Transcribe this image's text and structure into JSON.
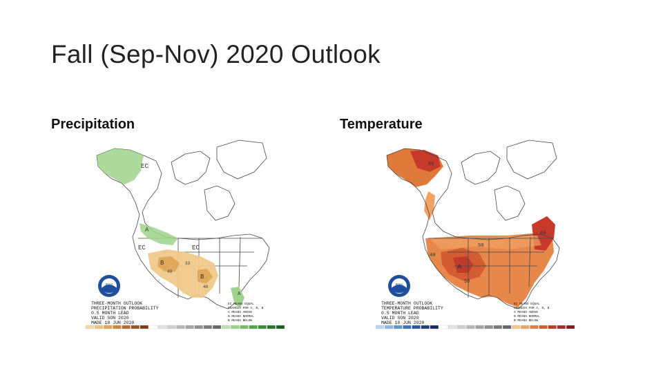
{
  "slide": {
    "title": "Fall (Sep-Nov) 2020 Outlook"
  },
  "panels": [
    {
      "label": "Precipitation",
      "map": {
        "noaa_logo_text": "NOAA",
        "title_lines": [
          "THREE-MONTH OUTLOOK",
          "PRECIPITATION PROBABILITY",
          "0.5 MONTH LEAD",
          "VALID SON 2020",
          "MADE 18 JUN 2020"
        ],
        "legend_lines": [
          "EC MEANS EQUAL",
          "CHANCES FOR A, N, B",
          "A MEANS ABOVE",
          "N MEANS NORMAL",
          "B MEANS BELOW"
        ],
        "region_labels": [
          "EC",
          "A",
          "EC",
          "EC",
          "B",
          "B",
          "40",
          "33",
          "40",
          "A"
        ],
        "scale_colors": [
          "#f5d9a8",
          "#eec17a",
          "#e4a552",
          "#cf8536",
          "#b86b2a",
          "#9a5421",
          "#7a3f18",
          "#ffffff",
          "#e2e2e2",
          "#cfcfcf",
          "#b8b8b8",
          "#a3a3a3",
          "#8f8f8f",
          "#7a7a7a",
          "#666666",
          "#bde3b0",
          "#9ad28a",
          "#74bf66",
          "#4fa748",
          "#3a8e3a",
          "#2a7430",
          "#1d5e27"
        ]
      }
    },
    {
      "label": "Temperature",
      "map": {
        "noaa_logo_text": "NOAA",
        "title_lines": [
          "THREE-MONTH OUTLOOK",
          "TEMPERATURE PROBABILITY",
          "0.5 MONTH LEAD",
          "VALID SON 2020",
          "MADE 18 JUN 2020"
        ],
        "legend_lines": [
          "EC MEANS EQUAL",
          "CHANCES FOR A, N, B",
          "A MEANS ABOVE",
          "N MEANS NORMAL",
          "B MEANS BELOW"
        ],
        "region_labels": [
          "60",
          "50",
          "40",
          "A",
          "50",
          "60"
        ],
        "scale_colors": [
          "#b9d3ee",
          "#8fb7e3",
          "#5f95d2",
          "#3a74bd",
          "#2a55a0",
          "#1e3c80",
          "#142a60",
          "#ffffff",
          "#e2e2e2",
          "#cfcfcf",
          "#b8b8b8",
          "#a3a3a3",
          "#8f8f8f",
          "#7a7a7a",
          "#666666",
          "#f6c48c",
          "#f0a264",
          "#e47d44",
          "#d45c33",
          "#bf3c2b",
          "#a32b2b",
          "#7d1d22"
        ]
      }
    }
  ]
}
